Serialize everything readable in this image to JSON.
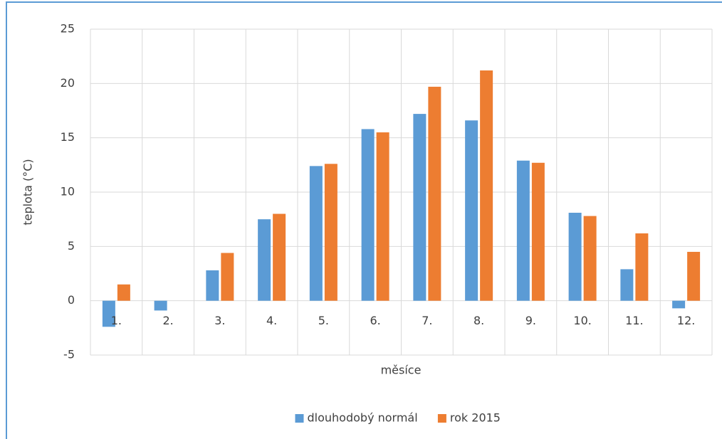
{
  "chart_data": {
    "type": "bar",
    "x_label": "měsíce",
    "y_label": "teplota (°C)",
    "categories": [
      "1.",
      "2.",
      "3.",
      "4.",
      "5.",
      "6.",
      "7.",
      "8.",
      "9.",
      "10.",
      "11.",
      "12."
    ],
    "series": [
      {
        "name": "dlouhodobý normál",
        "color": "#5b9bd5",
        "values": [
          -2.4,
          -0.9,
          2.8,
          7.5,
          12.4,
          15.8,
          17.2,
          16.6,
          12.9,
          8.1,
          2.9,
          -0.7
        ]
      },
      {
        "name": "rok 2015",
        "color": "#ed7d31",
        "values": [
          1.5,
          0,
          4.4,
          8.0,
          12.6,
          15.5,
          19.7,
          21.2,
          12.7,
          7.8,
          6.2,
          4.5
        ]
      }
    ],
    "ylim": [
      -5,
      25
    ],
    "yticks": [
      -5,
      0,
      5,
      10,
      15,
      20,
      25
    ],
    "grid": true,
    "legend": "bottom"
  }
}
